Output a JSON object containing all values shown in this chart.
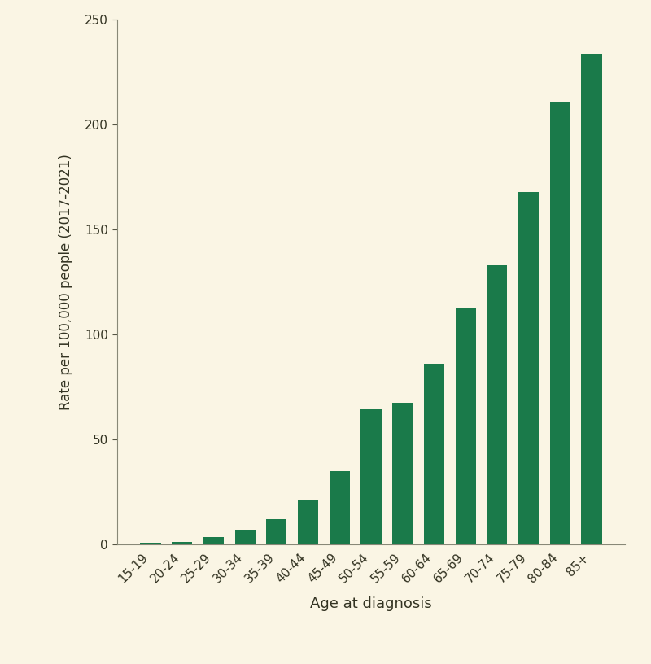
{
  "categories": [
    "15-19",
    "20-24",
    "25-29",
    "30-34",
    "35-39",
    "40-44",
    "45-49",
    "50-54",
    "55-59",
    "60-64",
    "65-69",
    "70-74",
    "75-79",
    "80-84",
    "85+"
  ],
  "values": [
    0.8,
    1.2,
    3.5,
    7.0,
    12.0,
    21.0,
    35.0,
    64.5,
    67.5,
    86.0,
    113.0,
    133.0,
    168.0,
    211.0,
    234.0
  ],
  "bar_color": "#1a7a4a",
  "background_color": "#faf5e4",
  "xlabel": "Age at diagnosis",
  "ylabel": "Rate per 100,000 people (2017-2021)",
  "ylim": [
    0,
    250
  ],
  "yticks": [
    0,
    50,
    100,
    150,
    200,
    250
  ],
  "xlabel_fontsize": 13,
  "ylabel_fontsize": 12,
  "tick_fontsize": 11,
  "bar_width": 0.65,
  "spine_color": "#888877",
  "tick_color": "#555544"
}
